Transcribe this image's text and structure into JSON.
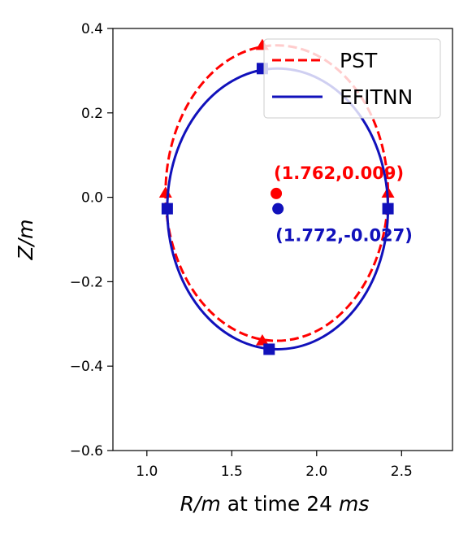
{
  "chart_data": {
    "type": "line",
    "xlabel_parts": [
      {
        "text": "R/m",
        "italic": true
      },
      {
        "text": " at time 24 ",
        "italic": false
      },
      {
        "text": "ms",
        "italic": true
      }
    ],
    "ylabel": "Z/m",
    "xlim": [
      0.8,
      2.8
    ],
    "ylim": [
      -0.6,
      0.4
    ],
    "xticks": [
      1.0,
      1.5,
      2.0,
      2.5
    ],
    "xtick_labels": [
      "1.0",
      "1.5",
      "2.0",
      "2.5"
    ],
    "yticks": [
      -0.6,
      -0.4,
      -0.2,
      0.0,
      0.2,
      0.4
    ],
    "ytick_labels": [
      "−0.6",
      "−0.4",
      "−0.2",
      "0.0",
      "0.2",
      "0.4"
    ],
    "grid": false,
    "legend_position": "top-right",
    "series": [
      {
        "name": "PST",
        "color": "#ff0000",
        "line_style": "dashed",
        "marker": "triangle",
        "center": [
          1.762,
          0.009
        ],
        "r_extent": [
          1.11,
          2.42
        ],
        "z_extent": [
          -0.34,
          0.36
        ],
        "top_point": [
          1.68,
          0.36
        ],
        "bottom_point": [
          1.68,
          -0.34
        ],
        "left_point": [
          1.11,
          0.01
        ],
        "right_point": [
          2.42,
          0.01
        ],
        "center_label": "(1.762,0.009)"
      },
      {
        "name": "EFITNN",
        "color": "#1111bb",
        "line_style": "solid",
        "marker": "square",
        "center": [
          1.772,
          -0.027
        ],
        "r_extent": [
          1.12,
          2.42
        ],
        "z_extent": [
          -0.36,
          0.305
        ],
        "top_point": [
          1.68,
          0.305
        ],
        "bottom_point": [
          1.72,
          -0.36
        ],
        "left_point": [
          1.12,
          -0.027
        ],
        "right_point": [
          2.42,
          -0.027
        ],
        "center_label": "(1.772,-0.027)"
      }
    ]
  }
}
